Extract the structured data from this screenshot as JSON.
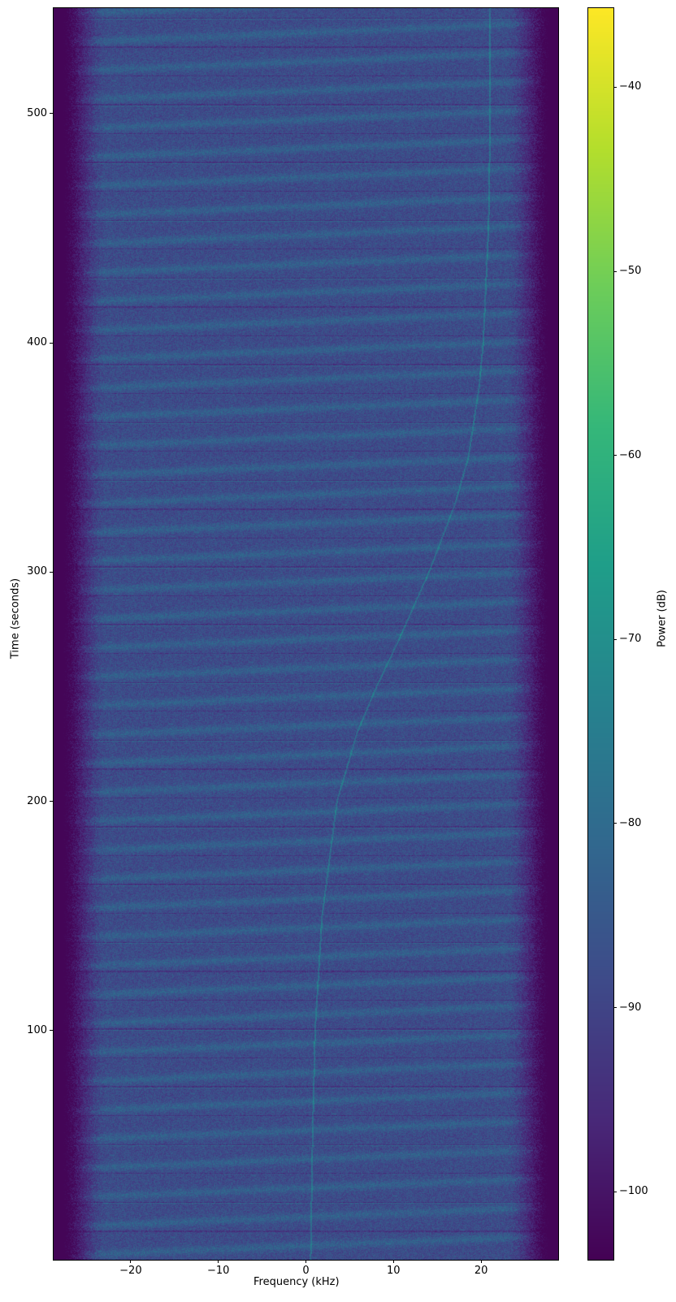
{
  "chart_data": {
    "type": "heatmap",
    "title": "",
    "xlabel": "Frequency (kHz)",
    "ylabel": "Time (seconds)",
    "colorbar_label": "Power (dB)",
    "colormap": "viridis",
    "xlim": [
      -28.8,
      28.8
    ],
    "ylim": [
      0,
      546
    ],
    "clim": [
      -103.7,
      -35.7
    ],
    "xticks": [
      -20,
      -10,
      0,
      10,
      20
    ],
    "xtick_labels": [
      "−20",
      "−10",
      "0",
      "10",
      "20"
    ],
    "yticks": [
      100,
      200,
      300,
      400,
      500
    ],
    "ytick_labels": [
      "100",
      "200",
      "300",
      "400",
      "500"
    ],
    "cticks": [
      -40,
      -50,
      -60,
      -70,
      -80,
      -90,
      -100
    ],
    "ctick_labels": [
      "−40",
      "−50",
      "−60",
      "−70",
      "−80",
      "−90",
      "−100"
    ],
    "grid": false,
    "background_level_db": -88,
    "edge_level_db": -103,
    "tone_trace": {
      "time": [
        0,
        50,
        100,
        150,
        200,
        230,
        250,
        270,
        300,
        330,
        350,
        380,
        400,
        450,
        500,
        546
      ],
      "frequency": [
        0.5,
        0.7,
        1.0,
        1.8,
        3.5,
        5.8,
        8.0,
        10.5,
        14.0,
        17.0,
        18.5,
        19.7,
        20.2,
        20.8,
        21.0,
        21.0
      ]
    }
  }
}
